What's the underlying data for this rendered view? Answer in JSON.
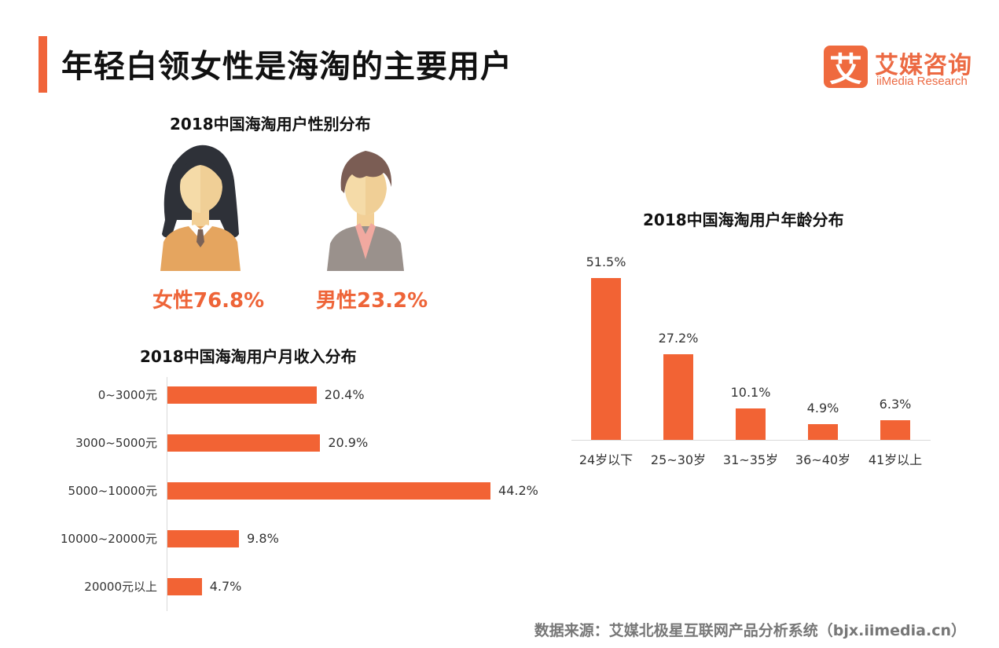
{
  "header": {
    "title": "年轻白领女性是海淘的主要用户",
    "accent_color": "#f0643a"
  },
  "logo": {
    "glyph": "艾",
    "name_cn": "艾媒咨询",
    "name_en": "iiMedia Research",
    "color": "#ec6a43"
  },
  "gender": {
    "title": "2018中国海淘用户性别分布",
    "female": {
      "icon": "female-user-icon",
      "label": "女性76.8%",
      "value": 76.8
    },
    "male": {
      "icon": "male-user-icon",
      "label": "男性23.2%",
      "value": 23.2
    }
  },
  "income": {
    "title": "2018中国海淘用户月收入分布"
  },
  "age": {
    "title": "2018中国海淘用户年龄分布"
  },
  "footer": {
    "source": "数据来源：艾媒北极星互联网产品分析系统（bjx.iimedia.cn）"
  },
  "chart_data": [
    {
      "type": "pie",
      "title": "2018中国海淘用户性别分布",
      "categories": [
        "女性",
        "男性"
      ],
      "values": [
        76.8,
        23.2
      ],
      "unit": "%"
    },
    {
      "type": "bar",
      "orientation": "horizontal",
      "title": "2018中国海淘用户月收入分布",
      "categories": [
        "0~3000元",
        "3000~5000元",
        "5000~10000元",
        "10000~20000元",
        "20000元以上"
      ],
      "values": [
        20.4,
        20.9,
        44.2,
        9.8,
        4.7
      ],
      "labels": [
        "20.4%",
        "20.9%",
        "44.2%",
        "9.8%",
        "4.7%"
      ],
      "xlabel": "",
      "ylabel": "",
      "unit": "%",
      "grid": false,
      "color": "#f26334"
    },
    {
      "type": "bar",
      "orientation": "vertical",
      "title": "2018中国海淘用户年龄分布",
      "categories": [
        "24岁以下",
        "25~30岁",
        "31~35岁",
        "36~40岁",
        "41岁以上"
      ],
      "values": [
        51.5,
        27.2,
        10.1,
        4.9,
        6.3
      ],
      "labels": [
        "51.5%",
        "27.2%",
        "10.1%",
        "4.9%",
        "6.3%"
      ],
      "xlabel": "",
      "ylabel": "",
      "unit": "%",
      "grid": false,
      "color": "#f26334"
    }
  ]
}
